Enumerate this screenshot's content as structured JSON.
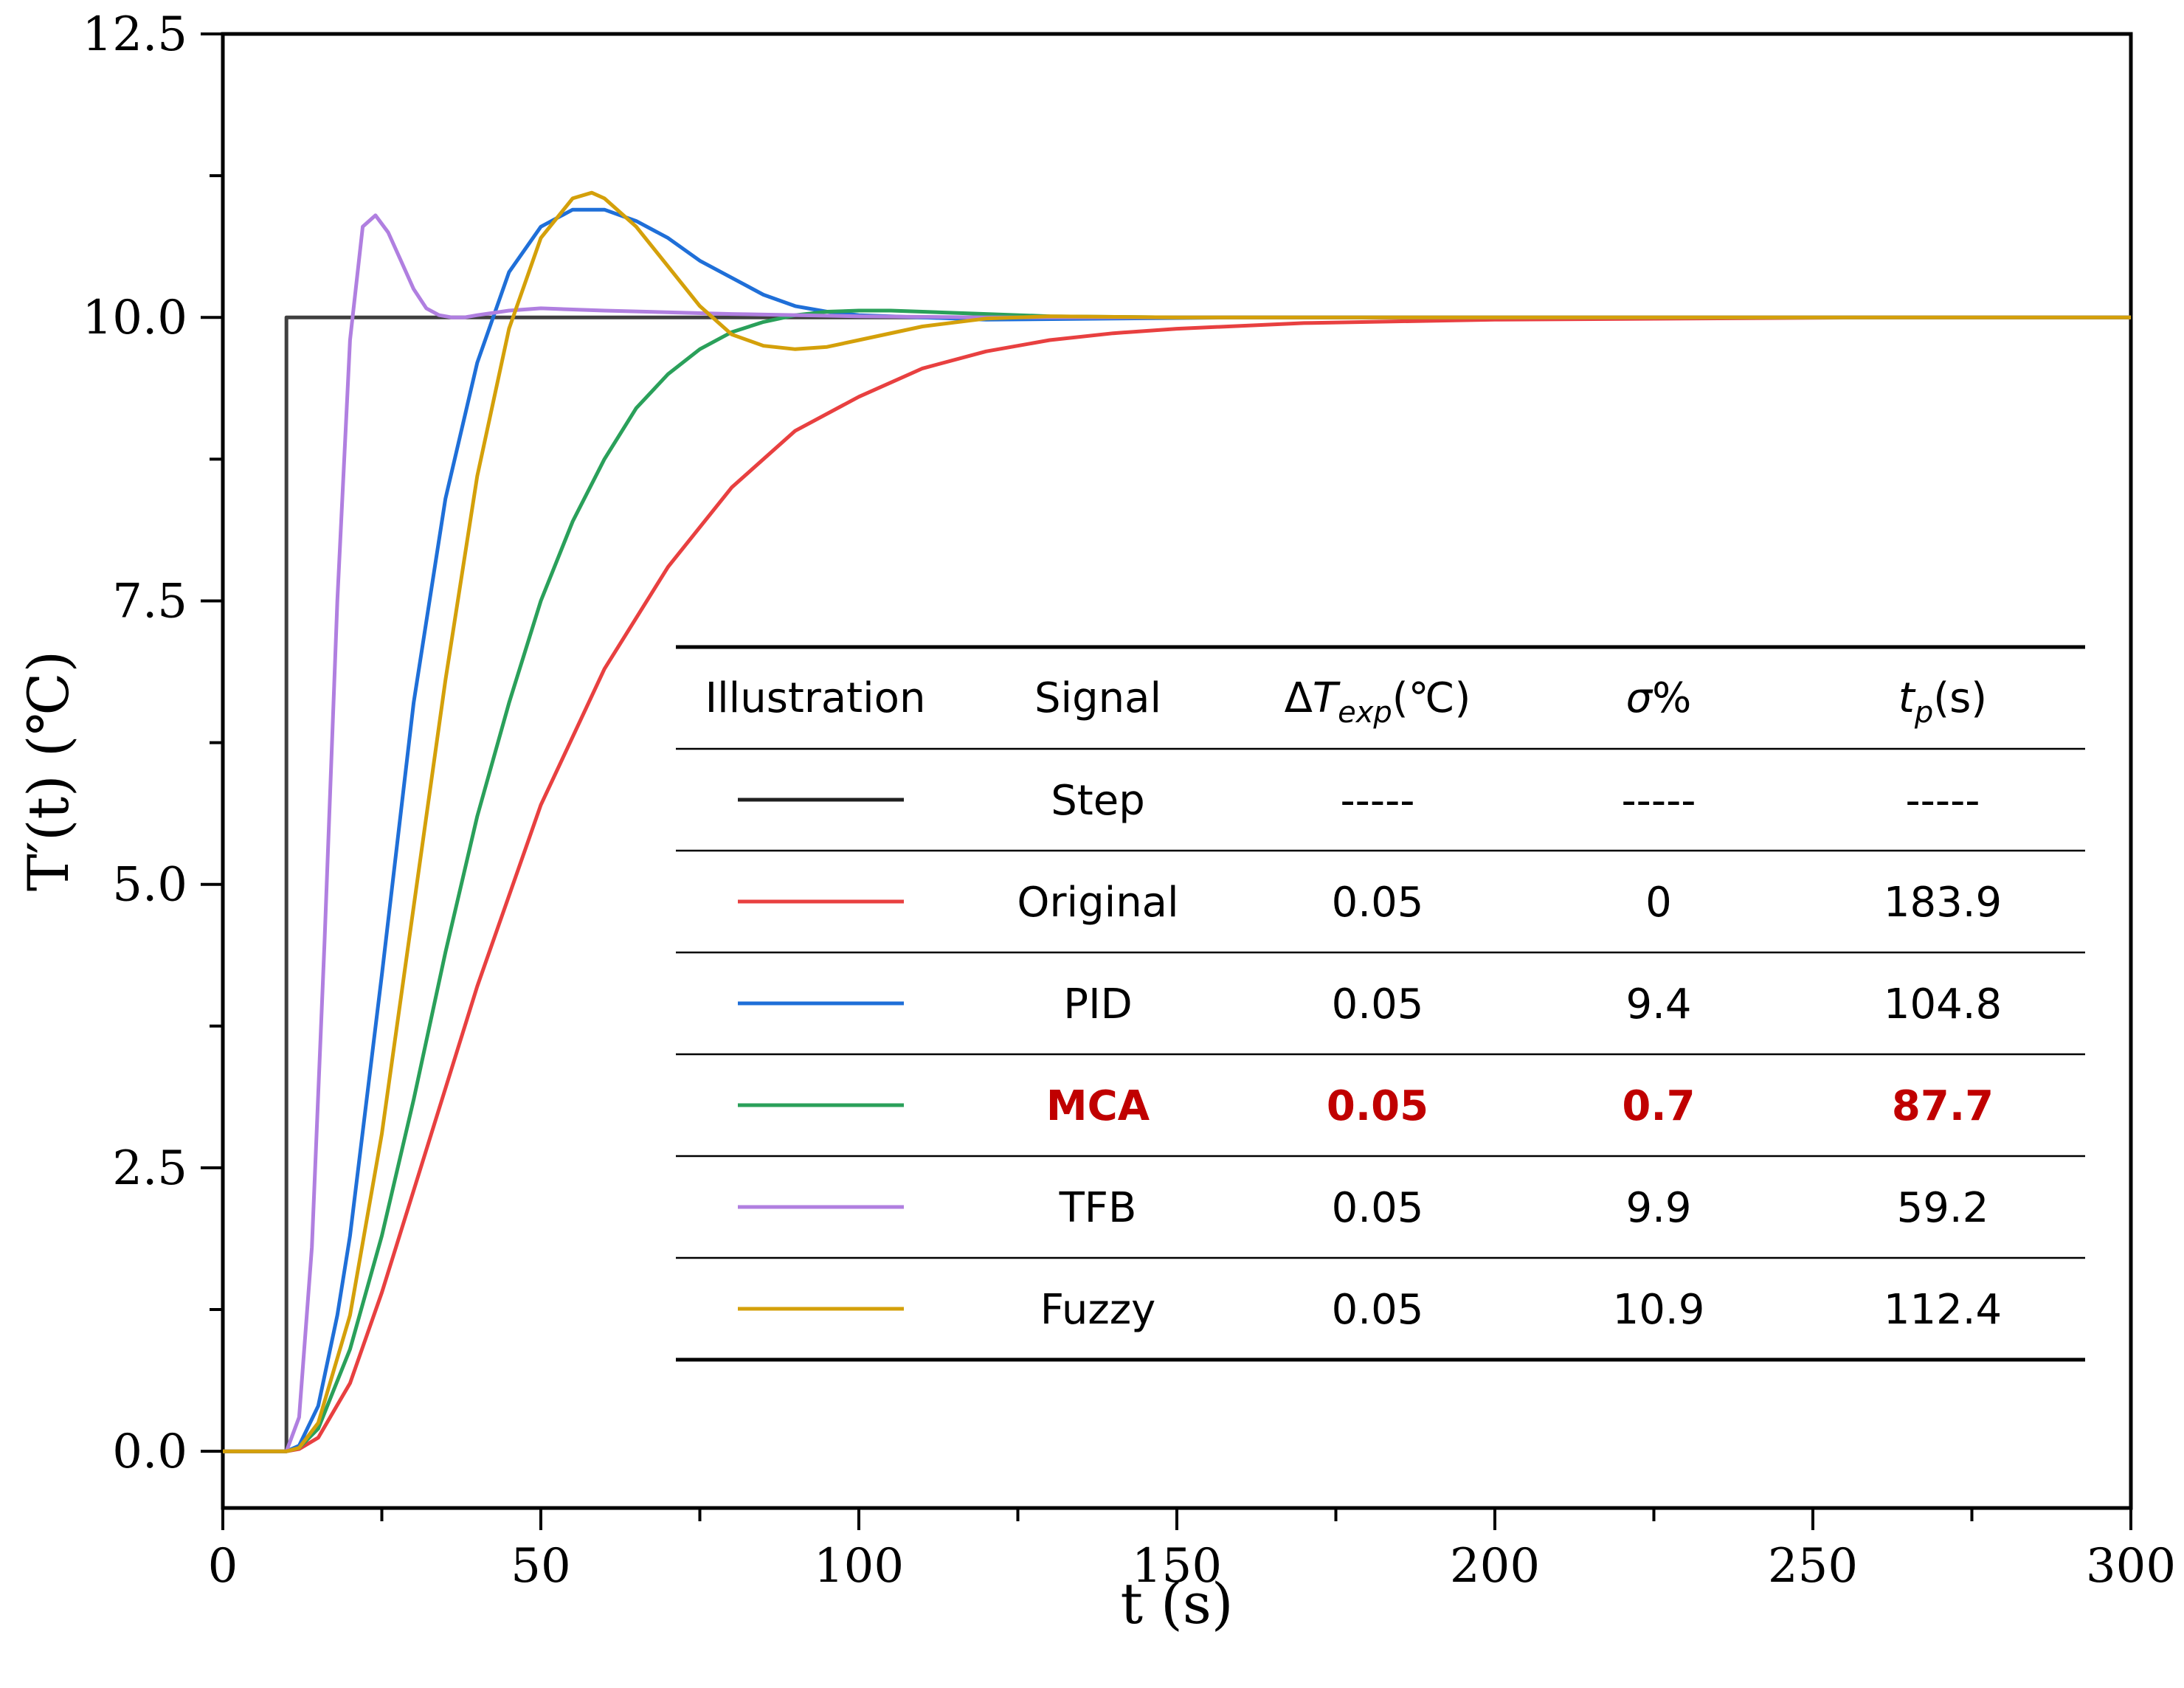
{
  "chart_data": {
    "type": "line",
    "title": "",
    "xlabel": "t (s)",
    "ylabel": "T′(t) (℃)",
    "xlim": [
      0,
      300
    ],
    "ylim": [
      -0.5,
      12.5
    ],
    "xticks": [
      0,
      50,
      100,
      150,
      200,
      250,
      300
    ],
    "xtick_labels": [
      "0",
      "50",
      "100",
      "150",
      "200",
      "250",
      "300"
    ],
    "yticks": [
      0,
      2.5,
      5,
      7.5,
      10,
      12.5
    ],
    "ytick_labels": [
      "0.0",
      "2.5",
      "5.0",
      "7.5",
      "10.0",
      "12.5"
    ],
    "grid": false,
    "series": [
      {
        "name": "Step",
        "color": "#404040",
        "x": [
          0,
          10,
          10,
          300
        ],
        "y": [
          0,
          0,
          10,
          10
        ]
      },
      {
        "name": "Original",
        "color": "#e84040",
        "x": [
          0,
          10,
          12,
          15,
          20,
          25,
          30,
          40,
          50,
          60,
          70,
          80,
          90,
          100,
          110,
          120,
          130,
          140,
          150,
          170,
          200,
          230,
          260,
          300
        ],
        "y": [
          0,
          0,
          0.02,
          0.12,
          0.6,
          1.4,
          2.3,
          4.1,
          5.7,
          6.9,
          7.8,
          8.5,
          9.0,
          9.3,
          9.55,
          9.7,
          9.8,
          9.86,
          9.9,
          9.95,
          9.98,
          9.99,
          10.0,
          10.0
        ]
      },
      {
        "name": "PID",
        "color": "#1f6fd8",
        "x": [
          0,
          10,
          12,
          15,
          18,
          20,
          25,
          30,
          35,
          40,
          45,
          50,
          55,
          60,
          65,
          70,
          75,
          80,
          85,
          90,
          95,
          100,
          110,
          120,
          140,
          160,
          200,
          300
        ],
        "y": [
          0,
          0,
          0.05,
          0.4,
          1.2,
          1.9,
          4.2,
          6.6,
          8.4,
          9.6,
          10.4,
          10.8,
          10.95,
          10.95,
          10.85,
          10.7,
          10.5,
          10.35,
          10.2,
          10.1,
          10.05,
          10.02,
          10.0,
          9.98,
          9.99,
          10.0,
          10.0,
          10.0
        ]
      },
      {
        "name": "MCA",
        "color": "#2aa05a",
        "x": [
          0,
          10,
          12,
          15,
          20,
          25,
          30,
          35,
          40,
          45,
          50,
          55,
          60,
          65,
          70,
          75,
          80,
          85,
          90,
          95,
          100,
          105,
          110,
          120,
          130,
          150,
          200,
          300
        ],
        "y": [
          0,
          0,
          0.03,
          0.2,
          0.9,
          1.9,
          3.1,
          4.4,
          5.6,
          6.6,
          7.5,
          8.2,
          8.75,
          9.2,
          9.5,
          9.72,
          9.87,
          9.96,
          10.02,
          10.05,
          10.06,
          10.06,
          10.05,
          10.03,
          10.01,
          10.0,
          10.0,
          10.0
        ]
      },
      {
        "name": "TFB",
        "color": "#b07fe0",
        "x": [
          0,
          10,
          12,
          14,
          16,
          18,
          20,
          22,
          24,
          26,
          28,
          30,
          32,
          34,
          36,
          38,
          40,
          45,
          50,
          60,
          80,
          100,
          120,
          150,
          300
        ],
        "y": [
          0,
          0,
          0.3,
          1.8,
          4.5,
          7.5,
          9.8,
          10.8,
          10.9,
          10.75,
          10.5,
          10.25,
          10.08,
          10.02,
          10.0,
          10.0,
          10.02,
          10.06,
          10.08,
          10.06,
          10.03,
          10.01,
          10.0,
          10.0,
          10.0
        ]
      },
      {
        "name": "Fuzzy",
        "color": "#d4a00a",
        "x": [
          0,
          10,
          12,
          15,
          20,
          25,
          30,
          35,
          40,
          45,
          50,
          55,
          58,
          60,
          65,
          70,
          75,
          80,
          85,
          90,
          95,
          100,
          110,
          120,
          130,
          150,
          300
        ],
        "y": [
          0,
          0,
          0.03,
          0.25,
          1.2,
          2.8,
          4.8,
          6.8,
          8.6,
          9.9,
          10.7,
          11.05,
          11.1,
          11.05,
          10.8,
          10.45,
          10.1,
          9.85,
          9.75,
          9.72,
          9.74,
          9.8,
          9.92,
          9.99,
          10.01,
          10.0,
          10.0
        ]
      }
    ]
  },
  "table": {
    "headers": [
      "Illustration",
      "Signal",
      "ΔTexp(℃)",
      "σ%",
      "tp(s)"
    ],
    "header_parts": {
      "dT_main": "ΔT",
      "dT_sub": "exp",
      "dT_unit": "(℃)",
      "sigma": "σ%",
      "tp_main": "t",
      "tp_sub": "p",
      "tp_unit": "(s)"
    },
    "rows": [
      {
        "signal": "Step",
        "color": "#202020",
        "dT": "-----",
        "sigma": "-----",
        "tp": "-----",
        "highlight": false
      },
      {
        "signal": "Original",
        "color": "#e84040",
        "dT": "0.05",
        "sigma": "0",
        "tp": "183.9",
        "highlight": false
      },
      {
        "signal": "PID",
        "color": "#1f6fd8",
        "dT": "0.05",
        "sigma": "9.4",
        "tp": "104.8",
        "highlight": false
      },
      {
        "signal": "MCA",
        "color": "#2aa05a",
        "dT": "0.05",
        "sigma": "0.7",
        "tp": "87.7",
        "highlight": true
      },
      {
        "signal": "TFB",
        "color": "#b07fe0",
        "dT": "0.05",
        "sigma": "9.9",
        "tp": "59.2",
        "highlight": false
      },
      {
        "signal": "Fuzzy",
        "color": "#d4a00a",
        "dT": "0.05",
        "sigma": "10.9",
        "tp": "112.4",
        "highlight": false
      }
    ]
  }
}
